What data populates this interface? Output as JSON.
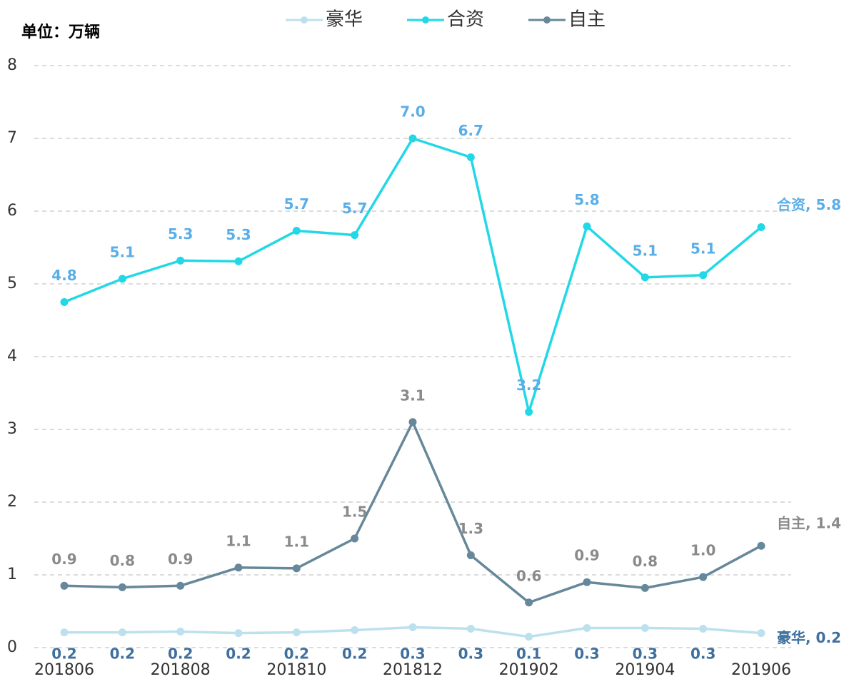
{
  "chart_data": {
    "type": "line",
    "unit": "单位：万辆",
    "categories": [
      "201806",
      null,
      "201808",
      null,
      "201810",
      null,
      "201812",
      null,
      "201902",
      null,
      "201904",
      null,
      "201906"
    ],
    "series": [
      {
        "name": "豪华",
        "color": "#bde0ee",
        "label_color": "#3e6f9e",
        "label_side": "below",
        "values": [
          0.21,
          0.21,
          0.22,
          0.2,
          0.21,
          0.24,
          0.28,
          0.26,
          0.15,
          0.27,
          0.27,
          0.26,
          0.2
        ],
        "value_labels": [
          "0.2",
          "0.2",
          "0.2",
          "0.2",
          "0.2",
          "0.2",
          "0.3",
          "0.3",
          "0.1",
          "0.3",
          "0.3",
          "0.3",
          "豪华, 0.2"
        ]
      },
      {
        "name": "合资",
        "color": "#22d8e6",
        "label_color": "#5aaee8",
        "label_side": "above",
        "values": [
          4.75,
          5.07,
          5.32,
          5.31,
          5.73,
          5.67,
          7.0,
          6.74,
          3.24,
          5.79,
          5.09,
          5.12,
          5.78
        ],
        "value_labels": [
          "4.8",
          "5.1",
          "5.3",
          "5.3",
          "5.7",
          "5.7",
          "7.0",
          "6.7",
          "3.2",
          "5.8",
          "5.1",
          "5.1",
          "合资, 5.8"
        ]
      },
      {
        "name": "自主",
        "color": "#66889a",
        "label_color": "#8a8a8a",
        "label_side": "above",
        "values": [
          0.85,
          0.83,
          0.85,
          1.1,
          1.09,
          1.5,
          3.1,
          1.27,
          0.62,
          0.9,
          0.82,
          0.97,
          1.4
        ],
        "value_labels": [
          "0.9",
          "0.8",
          "0.9",
          "1.1",
          "1.1",
          "1.5",
          "3.1",
          "1.3",
          "0.6",
          "0.9",
          "0.8",
          "1.0",
          "自主, 1.4"
        ]
      }
    ],
    "ylim": [
      0,
      8
    ],
    "yticks": [
      0,
      1,
      2,
      3,
      4,
      5,
      6,
      7,
      8
    ],
    "grid": true,
    "legend": "top"
  }
}
